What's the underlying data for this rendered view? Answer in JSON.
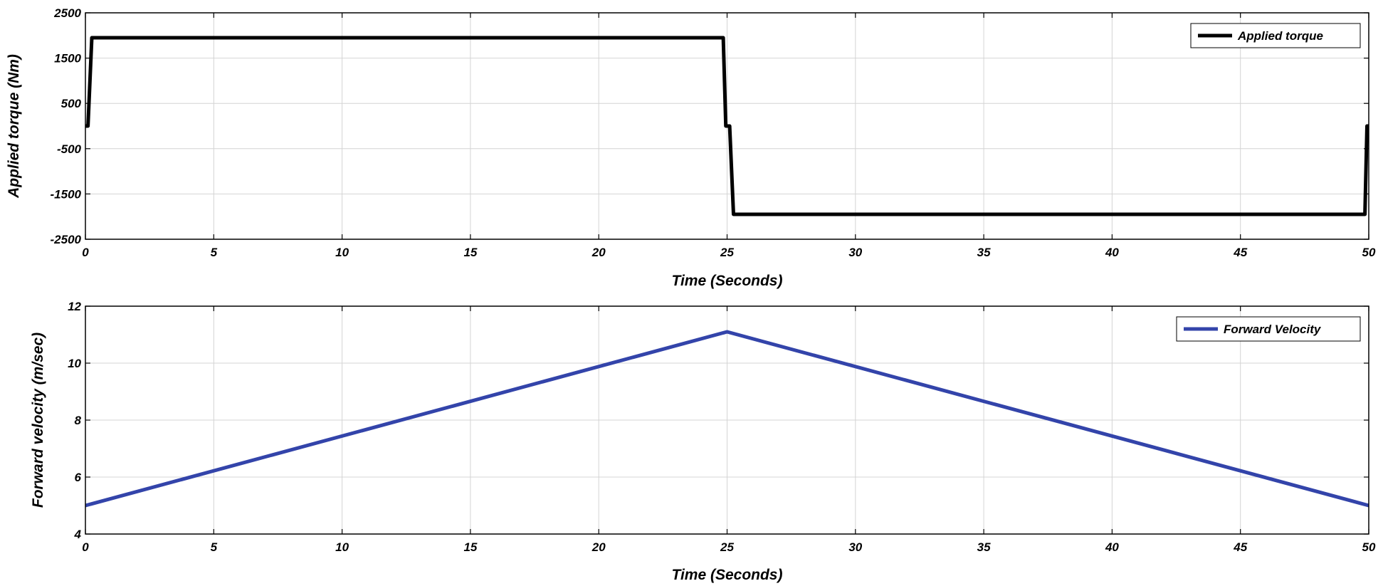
{
  "chart_data": [
    {
      "type": "line",
      "xlabel": "Time (Seconds)",
      "ylabel": "Applied torque (Nm)",
      "xlim": [
        0,
        50
      ],
      "ylim": [
        -2500,
        2500
      ],
      "xticks": [
        0,
        5,
        10,
        15,
        20,
        25,
        30,
        35,
        40,
        45,
        50
      ],
      "yticks": [
        -2500,
        -1500,
        -500,
        500,
        1500,
        2500
      ],
      "grid": true,
      "legend_position": "top-right",
      "series": [
        {
          "name": "Applied torque",
          "color": "#000000",
          "x": [
            0,
            0.1,
            0.25,
            24.85,
            24.95,
            25.1,
            25.25,
            49.85,
            49.93,
            50
          ],
          "y": [
            0,
            0,
            1950,
            1950,
            0,
            0,
            -1950,
            -1950,
            0,
            0
          ]
        }
      ]
    },
    {
      "type": "line",
      "xlabel": "Time (Seconds)",
      "ylabel": "Forward velocity (m/sec)",
      "xlim": [
        0,
        50
      ],
      "ylim": [
        4,
        12
      ],
      "xticks": [
        0,
        5,
        10,
        15,
        20,
        25,
        30,
        35,
        40,
        45,
        50
      ],
      "yticks": [
        4,
        6,
        8,
        10,
        12
      ],
      "grid": true,
      "legend_position": "top-right",
      "series": [
        {
          "name": "Forward Velocity",
          "color": "#3344aa",
          "x": [
            0,
            25,
            50
          ],
          "y": [
            5.0,
            11.1,
            5.0
          ]
        }
      ]
    }
  ]
}
